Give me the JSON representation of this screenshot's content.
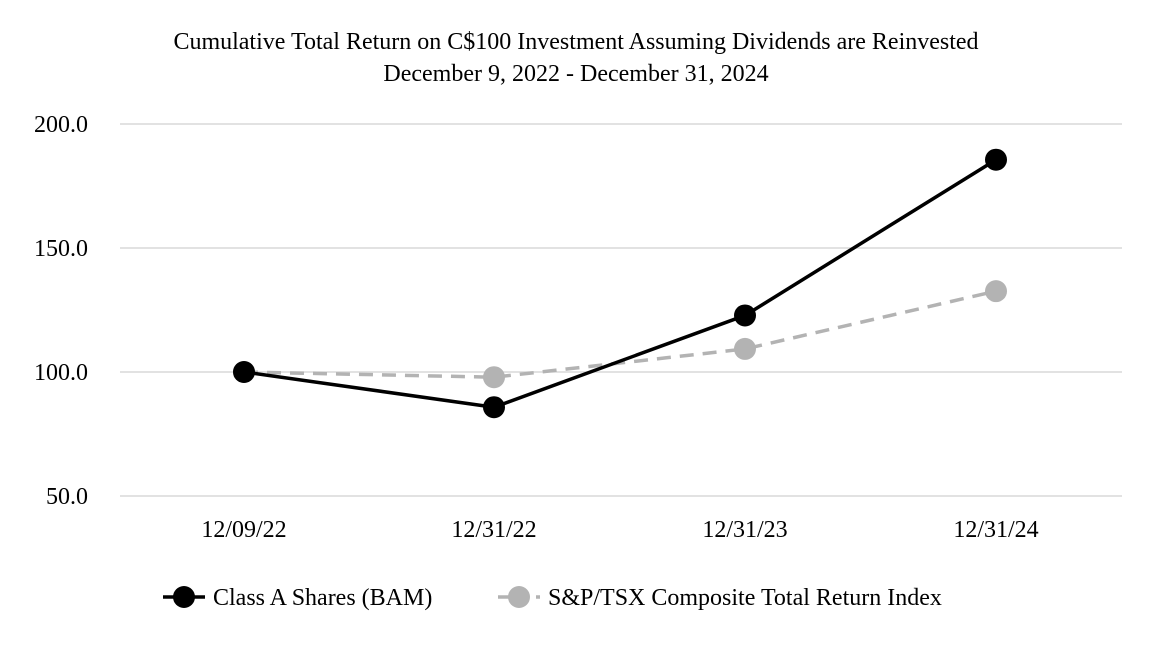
{
  "chart_data": {
    "type": "line",
    "title": "Cumulative Total Return on C$100 Investment Assuming Dividends are Reinvested",
    "subtitle": "December 9, 2022 - December 31, 2024",
    "xlabel": "",
    "ylabel": "",
    "categories": [
      "12/09/22",
      "12/31/22",
      "12/31/23",
      "12/31/24"
    ],
    "ylim": [
      50,
      200
    ],
    "yticks": [
      50,
      100,
      150,
      200
    ],
    "ytick_labels": [
      "50.0",
      "100.0",
      "150.0",
      "200.0"
    ],
    "grid": true,
    "legend_position": "bottom",
    "series": [
      {
        "name": "Class A Shares (BAM)",
        "values": [
          100.0,
          85.8,
          122.8,
          185.6
        ],
        "color": "#000000",
        "line_style": "solid",
        "marker": "circle"
      },
      {
        "name": "S&P/TSX Composite Total Return Index",
        "values": [
          100.0,
          97.9,
          109.3,
          132.6
        ],
        "color": "#b3b3b3",
        "line_style": "dashed",
        "marker": "circle"
      }
    ]
  }
}
